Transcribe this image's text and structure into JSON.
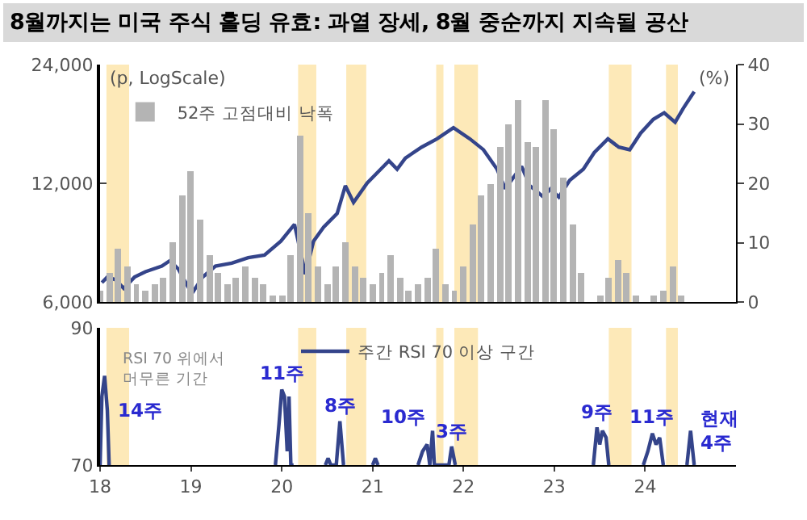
{
  "chart_data": [
    {
      "type": "line",
      "title": "8월까지는 미국 주식 홀딩 유효: 과열 장세, 8월 중순까지 지속될 공산",
      "ylabel": "(p, LogScale)",
      "y2label": "(%)",
      "log": "y",
      "legend": "top left",
      "tick_labels": "y",
      "marker": "none",
      "line_style": "solid",
      "xlim": [
        18,
        25
      ],
      "ylim": [
        6000,
        24000
      ],
      "yticks": [
        {
          "value": 6000,
          "label": "6,000"
        },
        {
          "value": 12000,
          "label": "12,000"
        },
        {
          "value": 24000,
          "label": "24,000"
        }
      ],
      "y2lim": [
        0,
        40
      ],
      "y2ticks": [
        0,
        10,
        20,
        30,
        40
      ],
      "bands": [
        {
          "axis": "x",
          "from": 18.07,
          "to": 18.32,
          "color": "#fde9b8"
        },
        {
          "axis": "x",
          "from": 20.18,
          "to": 20.38,
          "color": "#fde9b8"
        },
        {
          "axis": "x",
          "from": 20.71,
          "to": 20.93,
          "color": "#fde9b8"
        },
        {
          "axis": "x",
          "from": 21.7,
          "to": 21.78,
          "color": "#fde9b8"
        },
        {
          "axis": "x",
          "from": 21.9,
          "to": 22.16,
          "color": "#fde9b8"
        },
        {
          "axis": "x",
          "from": 23.6,
          "to": 23.85,
          "color": "#fde9b8"
        },
        {
          "axis": "x",
          "from": 24.23,
          "to": 24.36,
          "color": "#fde9b8"
        }
      ],
      "series": [
        {
          "name": "52주 고점대비 낙폭",
          "type": "bar",
          "axis": "y2",
          "color": "#b4b4b4",
          "x": [
            18.0,
            18.1,
            18.2,
            18.3,
            18.4,
            18.5,
            18.6,
            18.7,
            18.8,
            18.9,
            19.0,
            19.1,
            19.2,
            19.3,
            19.4,
            19.5,
            19.6,
            19.7,
            19.8,
            19.9,
            20.0,
            20.1,
            20.2,
            20.3,
            20.4,
            20.5,
            20.6,
            20.7,
            20.8,
            20.9,
            21.0,
            21.1,
            21.2,
            21.3,
            21.4,
            21.5,
            21.6,
            21.7,
            21.8,
            21.9,
            22.0,
            22.1,
            22.2,
            22.3,
            22.4,
            22.5,
            22.6,
            22.7,
            22.8,
            22.9,
            23.0,
            23.1,
            23.2,
            23.3,
            23.4,
            23.5,
            23.6,
            23.7,
            23.8,
            23.9,
            24.0,
            24.1,
            24.2,
            24.3,
            24.4
          ],
          "values": [
            2,
            5,
            9,
            6,
            3,
            2,
            3,
            4,
            10,
            18,
            22,
            14,
            8,
            5,
            3,
            4,
            6,
            4,
            3,
            1,
            1,
            8,
            28,
            15,
            6,
            3,
            6,
            10,
            6,
            4,
            3,
            5,
            8,
            4,
            2,
            3,
            4,
            9,
            3,
            2,
            6,
            13,
            18,
            20,
            26,
            30,
            34,
            27,
            26,
            34,
            29,
            21,
            13,
            5,
            0,
            1,
            4,
            7,
            5,
            1,
            0,
            1,
            2,
            6,
            1
          ]
        },
        {
          "color": "#34448a",
          "x": [
            18.02,
            18.08,
            18.17,
            18.26,
            18.38,
            18.5,
            18.68,
            18.77,
            18.86,
            19.01,
            19.13,
            19.27,
            19.45,
            19.63,
            19.81,
            19.99,
            20.14,
            20.26,
            20.35,
            20.46,
            20.61,
            20.7,
            20.79,
            20.94,
            21.09,
            21.18,
            21.27,
            21.36,
            21.54,
            21.71,
            21.89,
            22.07,
            22.22,
            22.37,
            22.46,
            22.64,
            22.73,
            22.88,
            22.96,
            23.05,
            23.17,
            23.32,
            23.44,
            23.59,
            23.71,
            23.83,
            23.95,
            24.09,
            24.21,
            24.33,
            24.42,
            24.54
          ],
          "values": [
            6720,
            6940,
            6830,
            6500,
            6940,
            7160,
            7400,
            7640,
            7280,
            6300,
            6940,
            7400,
            7530,
            7770,
            7890,
            8560,
            9440,
            7060,
            8560,
            9280,
            10060,
            11830,
            10730,
            12020,
            13030,
            13680,
            13030,
            13900,
            14820,
            15560,
            16610,
            15560,
            14600,
            13030,
            11630,
            13250,
            11830,
            11080,
            11630,
            11080,
            12210,
            13030,
            14360,
            15560,
            14820,
            14600,
            16080,
            17430,
            18110,
            17140,
            18600,
            20490
          ]
        }
      ]
    },
    {
      "type": "line",
      "legend": "top",
      "marker": "none",
      "line_style": "solid",
      "xlim": [
        18,
        25
      ],
      "xticks": [
        18,
        19,
        20,
        21,
        22,
        23,
        24
      ],
      "ylim": [
        70,
        90
      ],
      "yticks": [
        70,
        90
      ],
      "bands": [
        {
          "axis": "x",
          "from": 18.07,
          "to": 18.32,
          "color": "#fde9b8"
        },
        {
          "axis": "x",
          "from": 20.18,
          "to": 20.38,
          "color": "#fde9b8"
        },
        {
          "axis": "x",
          "from": 20.71,
          "to": 20.93,
          "color": "#fde9b8"
        },
        {
          "axis": "x",
          "from": 21.7,
          "to": 21.78,
          "color": "#fde9b8"
        },
        {
          "axis": "x",
          "from": 21.9,
          "to": 22.16,
          "color": "#fde9b8"
        },
        {
          "axis": "x",
          "from": 23.6,
          "to": 23.85,
          "color": "#fde9b8"
        },
        {
          "axis": "x",
          "from": 24.23,
          "to": 24.36,
          "color": "#fde9b8"
        }
      ],
      "annotations": [
        "RSI 70 위에서\n머무른 기간",
        {
          "text": "14주",
          "x": 18.08,
          "y": 78
        },
        {
          "text": "11주",
          "x": 20.0,
          "y": 81
        },
        {
          "text": "8주",
          "x": 20.64,
          "y": 76.4
        },
        {
          "text": "10주",
          "x": 21.66,
          "y": 75
        },
        {
          "text": "3주",
          "x": 21.87,
          "y": 72.7
        },
        {
          "text": "9주",
          "x": 23.47,
          "y": 75.5
        },
        {
          "text": "11주",
          "x": 24.08,
          "y": 74.6
        },
        {
          "text": "현재\n4주",
          "x": 24.5,
          "y": 75
        }
      ],
      "series": [
        {
          "name": "주간 RSI 70 이상 구간",
          "color": "#34448a",
          "x": [
            18.0,
            18.02,
            18.05,
            18.08,
            18.1,
            18.5,
            19.93,
            19.97,
            20.0,
            20.03,
            20.06,
            20.08,
            20.1,
            20.13,
            20.3,
            20.48,
            20.51,
            20.54,
            20.6,
            20.64,
            20.68,
            20.8,
            21.0,
            21.03,
            21.06,
            21.3,
            21.5,
            21.55,
            21.6,
            21.63,
            21.66,
            21.68,
            21.84,
            21.87,
            21.91,
            22.5,
            23.43,
            23.47,
            23.5,
            23.53,
            23.57,
            23.6,
            23.8,
            23.98,
            24.03,
            24.08,
            24.12,
            24.16,
            24.2,
            24.3,
            24.46,
            24.5,
            24.54
          ],
          "values": [
            70,
            80,
            83,
            78,
            70,
            null,
            70,
            76,
            81,
            80,
            72,
            80,
            70,
            70,
            null,
            70,
            71,
            70,
            70,
            76.4,
            70,
            null,
            70,
            71,
            70,
            null,
            70,
            72,
            73,
            70,
            75,
            70,
            70,
            72.7,
            70,
            null,
            70,
            75.5,
            73,
            75,
            74,
            70,
            null,
            70,
            72,
            74.6,
            73,
            74,
            70,
            null,
            70,
            75,
            70
          ]
        }
      ]
    }
  ]
}
